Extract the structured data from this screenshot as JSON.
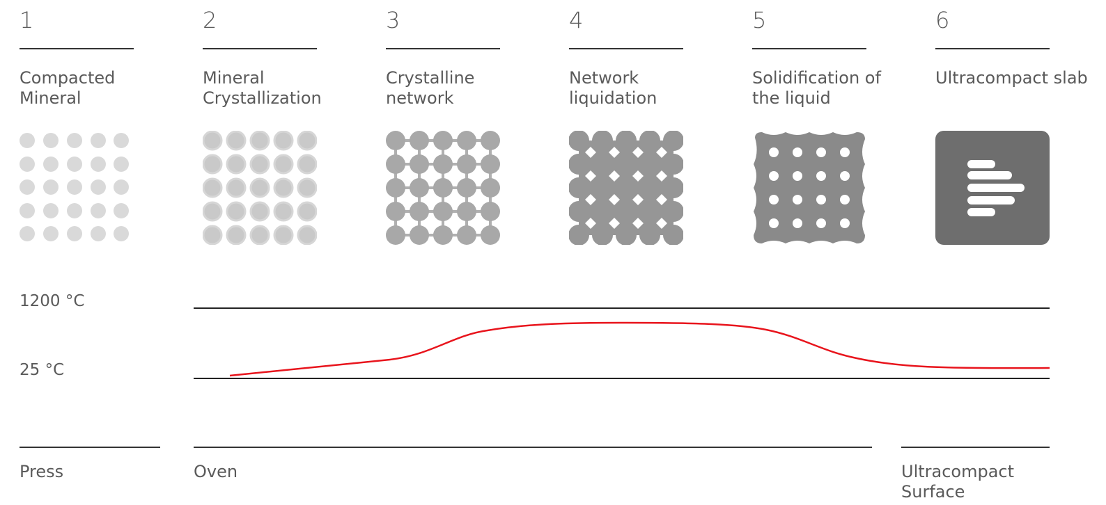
{
  "stages": [
    {
      "num": "1",
      "label": "Compacted Mineral"
    },
    {
      "num": "2",
      "label": "Mineral Crystallization"
    },
    {
      "num": "3",
      "label": "Crystalline network"
    },
    {
      "num": "4",
      "label": "Network liquidation"
    },
    {
      "num": "5",
      "label": "Solidification of the liquid"
    },
    {
      "num": "6",
      "label": "Ultracompact slab"
    }
  ],
  "temperature": {
    "high": "1200 °C",
    "low": "25 °C"
  },
  "phases": [
    {
      "label": "Press"
    },
    {
      "label": "Oven"
    },
    {
      "label": "Ultracompact Surface"
    }
  ],
  "colors": {
    "curve": "#e8141c",
    "light_dot": "#d9d9d9",
    "mid_dot": "#bdbdbd",
    "network": "#a8a8a8",
    "liquid": "#8c8c8c",
    "slab": "#6e6e6e"
  }
}
